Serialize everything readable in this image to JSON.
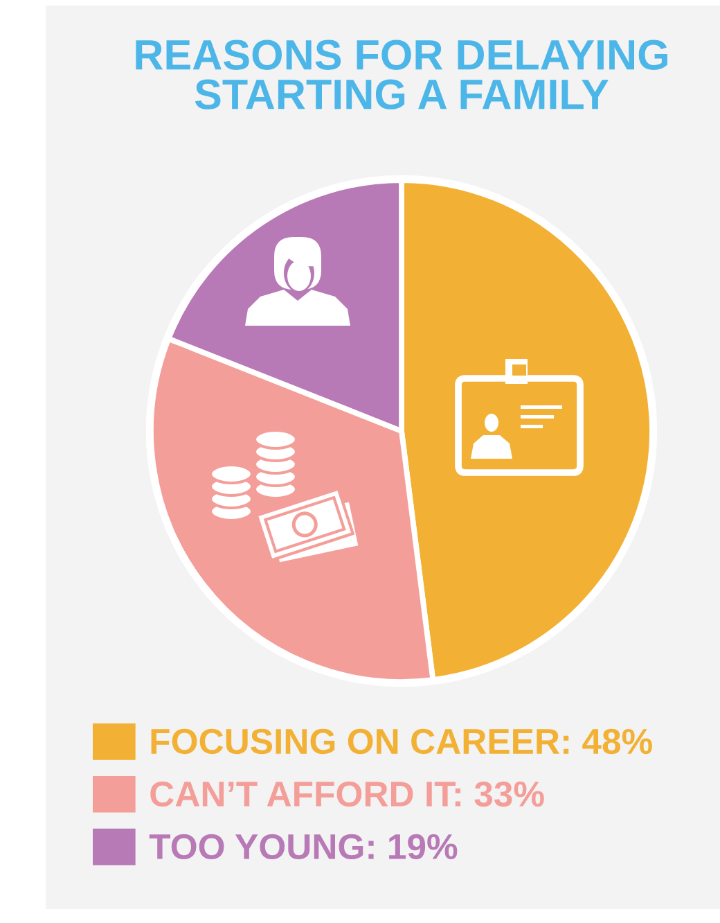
{
  "chart_data": {
    "type": "pie",
    "title": "REASONS FOR DELAYING\nSTARTING A FAMILY",
    "categories": [
      "FOCUSING ON CAREER",
      "CAN’T AFFORD IT",
      "TOO YOUNG"
    ],
    "values": [
      48,
      33,
      19
    ],
    "value_labels": [
      "48%",
      "33%",
      "19%"
    ],
    "colors": [
      "#f2b134",
      "#f49e9a",
      "#b87ab6"
    ],
    "legend": "bottom"
  }
}
